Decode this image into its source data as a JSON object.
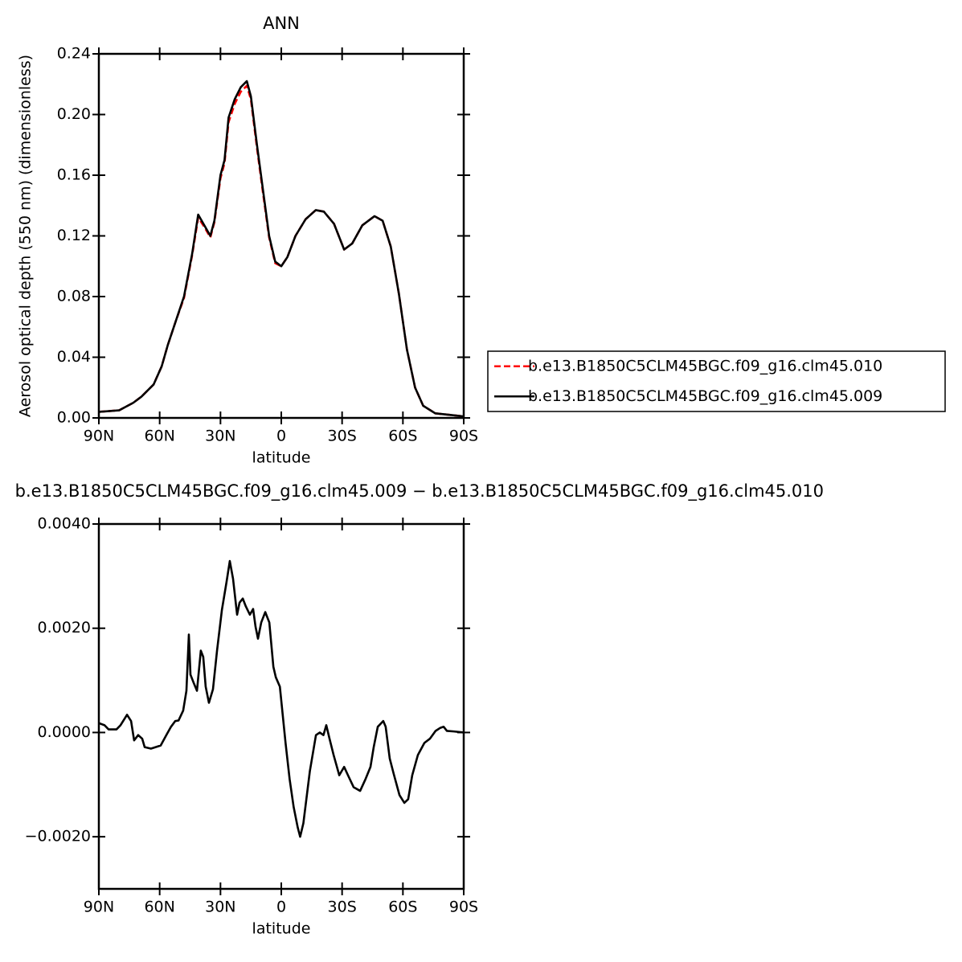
{
  "chart_data": [
    {
      "type": "line",
      "title": "ANN",
      "x_label": "latitude",
      "y_label": "Aerosol optical depth (550 nm) (dimensionless)",
      "x": [
        90,
        80,
        73,
        69,
        63,
        59,
        56,
        52,
        48,
        45,
        44,
        41,
        38,
        35,
        33,
        30,
        28,
        26,
        23,
        20,
        17,
        15,
        12,
        9,
        6,
        3,
        0,
        -3,
        -7,
        -12,
        -17,
        -21,
        -26,
        -31,
        -35,
        -40,
        -46,
        -50,
        -54,
        -58,
        -62,
        -66,
        -70,
        -76,
        -83,
        -90
      ],
      "xlim": [
        90,
        -90
      ],
      "xticks": [
        {
          "value": 90,
          "label": "90N"
        },
        {
          "value": 60,
          "label": "60N"
        },
        {
          "value": 30,
          "label": "30N"
        },
        0,
        {
          "value": -30,
          "label": "30S"
        },
        {
          "value": -60,
          "label": "60S"
        },
        {
          "value": -90,
          "label": "90S"
        }
      ],
      "ylim": [
        0,
        0.24
      ],
      "yticks": [
        {
          "value": 0,
          "label": "0.00"
        },
        0.04,
        0.08,
        0.12,
        0.16,
        {
          "value": 0.2,
          "label": "0.20"
        },
        0.24
      ],
      "legend": "outside-right",
      "series": [
        {
          "name": "b.e13.B1850C5CLM45BGC.f09_g16.clm45.010",
          "color": "#ff0000",
          "line_style": "dashed",
          "values": [
            0.004,
            0.005,
            0.01,
            0.014,
            0.022,
            0.034,
            0.048,
            0.064,
            0.079,
            0.1,
            0.107,
            0.132,
            0.126,
            0.119,
            0.129,
            0.158,
            0.168,
            0.195,
            0.207,
            0.215,
            0.219,
            0.21,
            0.178,
            0.148,
            0.119,
            0.102,
            0.1,
            0.106,
            0.12,
            0.131,
            0.137,
            0.136,
            0.128,
            0.111,
            0.115,
            0.127,
            0.133,
            0.13,
            0.113,
            0.082,
            0.045,
            0.02,
            0.008,
            0.003,
            0.002,
            0.001
          ]
        },
        {
          "name": "b.e13.B1850C5CLM45BGC.f09_g16.clm45.009",
          "color": "#000000",
          "line_style": "solid",
          "values": [
            0.004,
            0.005,
            0.01,
            0.014,
            0.022,
            0.034,
            0.048,
            0.064,
            0.08,
            0.101,
            0.108,
            0.134,
            0.127,
            0.12,
            0.13,
            0.16,
            0.17,
            0.198,
            0.21,
            0.218,
            0.222,
            0.212,
            0.18,
            0.15,
            0.12,
            0.103,
            0.1,
            0.106,
            0.12,
            0.131,
            0.137,
            0.136,
            0.128,
            0.111,
            0.115,
            0.127,
            0.133,
            0.13,
            0.113,
            0.082,
            0.045,
            0.02,
            0.008,
            0.003,
            0.002,
            0.001
          ]
        }
      ]
    },
    {
      "type": "line",
      "title": "b.e13.B1850C5CLM45BGC.f09_g16.clm45.009 − b.e13.B1850C5CLM45BGC.f09_g16.clm45.010",
      "x_label": "latitude",
      "x": [
        90,
        87.2,
        85.2,
        81.3,
        79.3,
        76.1,
        74.1,
        72.6,
        70.6,
        68.6,
        67.4,
        64.3,
        59.5,
        56.7,
        54.4,
        52.3,
        50.7,
        48.4,
        46.8,
        45.6,
        44.8,
        43.2,
        41.6,
        39.7,
        38.5,
        37.3,
        35.7,
        33.7,
        31.7,
        29.3,
        27,
        25.4,
        23.8,
        21.8,
        20.6,
        19,
        17.5,
        15.5,
        13.9,
        12.7,
        11.5,
        9.9,
        7.9,
        5.9,
        3.9,
        2.7,
        0.7,
        -2.1,
        -4.1,
        -6.1,
        -8.1,
        -9.3,
        -10.9,
        -14.1,
        -17.1,
        -19,
        -20.8,
        -22.2,
        -23.8,
        -25.8,
        -28.6,
        -31,
        -32.9,
        -35.7,
        -38.9,
        -41.6,
        -44,
        -45.6,
        -47.6,
        -50.3,
        -51.5,
        -53.5,
        -55.5,
        -58.3,
        -60.7,
        -62.6,
        -64.6,
        -67.4,
        -70.6,
        -73.3,
        -76.1,
        -78.5,
        -80.1,
        -81.7,
        -85.2,
        -90
      ],
      "xlim": [
        90,
        -90
      ],
      "xticks": [
        {
          "value": 90,
          "label": "90N"
        },
        {
          "value": 60,
          "label": "60N"
        },
        {
          "value": 30,
          "label": "30N"
        },
        0,
        {
          "value": -30,
          "label": "30S"
        },
        {
          "value": -60,
          "label": "60S"
        },
        {
          "value": -90,
          "label": "90S"
        }
      ],
      "ylim": [
        -0.003,
        0.004
      ],
      "yticks": [
        {
          "value": -0.002,
          "label": "−0.0020"
        },
        {
          "value": 0,
          "label": "0.0000"
        },
        {
          "value": 0.002,
          "label": "0.0020"
        },
        {
          "value": 0.004,
          "label": "0.0040"
        }
      ],
      "series": [
        {
          "color": "#000000",
          "line_style": "solid",
          "values": [
            0.00018,
            0.00014,
            6e-05,
            6e-05,
            0.00014,
            0.00034,
            0.00022,
            -0.00015,
            -5e-05,
            -0.00012,
            -0.00028,
            -0.00031,
            -0.00025,
            -5e-05,
            0.00011,
            0.00022,
            0.00023,
            0.00042,
            0.0008,
            0.00188,
            0.00111,
            0.00095,
            0.0008,
            0.00157,
            0.00145,
            0.00088,
            0.00057,
            0.00083,
            0.00157,
            0.00235,
            0.00289,
            0.00329,
            0.00295,
            0.00226,
            0.00249,
            0.00257,
            0.00242,
            0.00226,
            0.00237,
            0.00203,
            0.0018,
            0.00211,
            0.00231,
            0.00211,
            0.00126,
            0.00106,
            0.00088,
            -0.0002,
            -0.00089,
            -0.00143,
            -0.00182,
            -0.002,
            -0.00174,
            -0.00074,
            -5e-05,
            0,
            -5e-05,
            0.00014,
            -0.00012,
            -0.00043,
            -0.00082,
            -0.00066,
            -0.00082,
            -0.00105,
            -0.00112,
            -0.00089,
            -0.00066,
            -0.00028,
            0.00011,
            0.00022,
            0.00011,
            -0.0005,
            -0.0008,
            -0.0012,
            -0.00135,
            -0.00128,
            -0.00082,
            -0.00043,
            -0.0002,
            -0.00012,
            3e-05,
            9e-05,
            0.00011,
            3e-05,
            2e-05,
            0
          ]
        }
      ]
    }
  ]
}
